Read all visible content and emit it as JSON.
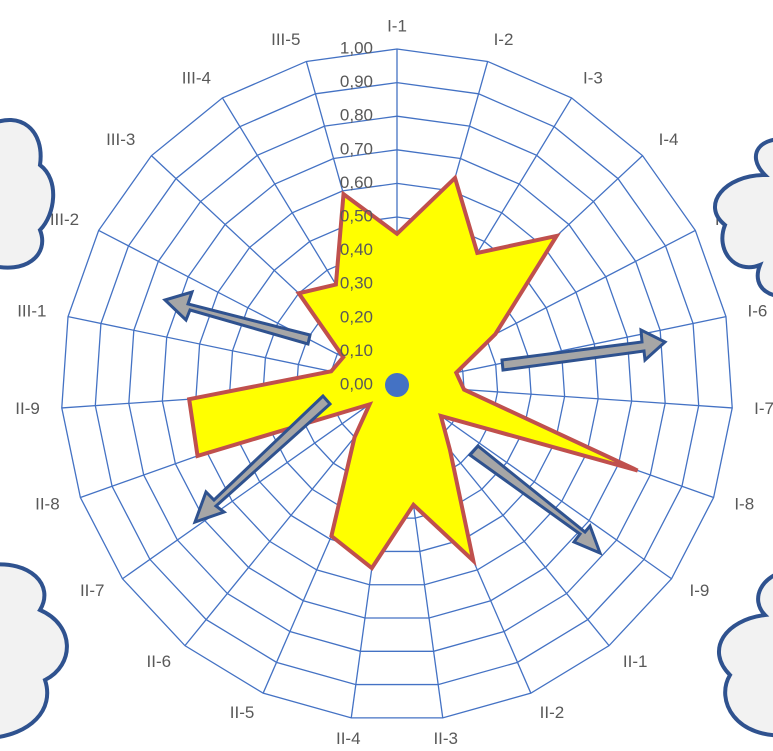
{
  "chart_data": {
    "type": "radar",
    "categories": [
      "I-1",
      "I-2",
      "I-3",
      "I-4",
      "I-5",
      "I-6",
      "I-7",
      "I-8",
      "I-9",
      "II-1",
      "II-2",
      "II-3",
      "II-4",
      "II-5",
      "II-6",
      "II-7",
      "II-8",
      "II-9",
      "III-1",
      "III-2",
      "III-3",
      "III-4",
      "III-5"
    ],
    "values": [
      0.45,
      0.64,
      0.46,
      0.65,
      0.33,
      0.18,
      0.2,
      0.76,
      0.16,
      0.25,
      0.57,
      0.36,
      0.55,
      0.49,
      0.2,
      0.1,
      0.63,
      0.62,
      0.2,
      0.18,
      0.4,
      0.35,
      0.59
    ],
    "color": "#ffff00",
    "line_color": "#c0504d",
    "ylim": [
      0,
      1
    ],
    "yticks": [
      {
        "value": 0,
        "label": "0,00"
      },
      {
        "value": 0.1,
        "label": "0,10"
      },
      {
        "value": 0.2,
        "label": "0,20"
      },
      {
        "value": 0.3,
        "label": "0,30"
      },
      {
        "value": 0.4,
        "label": "0,40"
      },
      {
        "value": 0.5,
        "label": "0,50"
      },
      {
        "value": 0.6,
        "label": "0,60"
      },
      {
        "value": 0.7,
        "label": "0,70"
      },
      {
        "value": 0.8,
        "label": "0,80"
      },
      {
        "value": 0.9,
        "label": "0,90"
      },
      {
        "value": 1,
        "label": "1,00"
      }
    ],
    "grid": true
  }
}
